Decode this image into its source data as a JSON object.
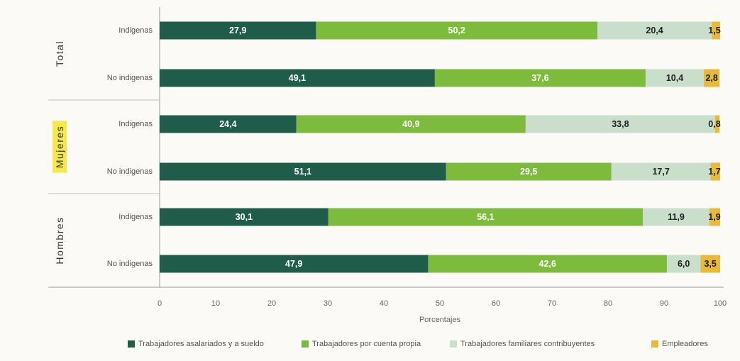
{
  "chart_data": {
    "type": "bar",
    "orientation": "horizontal",
    "stacked": true,
    "xlabel": "Porcentajes",
    "xlim": [
      0,
      100
    ],
    "xticks": [
      0,
      10,
      20,
      30,
      40,
      50,
      60,
      70,
      80,
      90,
      100
    ],
    "groups": [
      {
        "name": "Total",
        "highlight": false,
        "rows": [
          {
            "label": "Indigenas",
            "values": [
              27.9,
              50.2,
              20.4,
              1.5
            ],
            "texts": [
              "27,9",
              "50,2",
              "20,4",
              "1,5"
            ]
          },
          {
            "label": "No indigenas",
            "values": [
              49.1,
              37.6,
              10.4,
              2.8
            ],
            "texts": [
              "49,1",
              "37,6",
              "10,4",
              "2,8"
            ]
          }
        ]
      },
      {
        "name": "Mujeres",
        "highlight": true,
        "rows": [
          {
            "label": "Indigenas",
            "values": [
              24.4,
              40.9,
              33.8,
              0.8
            ],
            "texts": [
              "24,4",
              "40,9",
              "33,8",
              "0,8"
            ]
          },
          {
            "label": "No indigenas",
            "values": [
              51.1,
              29.5,
              17.7,
              1.7
            ],
            "texts": [
              "51,1",
              "29,5",
              "17,7",
              "1,7"
            ]
          }
        ]
      },
      {
        "name": "Hombres",
        "highlight": false,
        "rows": [
          {
            "label": "Indigenas",
            "values": [
              30.1,
              56.1,
              11.9,
              1.9
            ],
            "texts": [
              "30,1",
              "56,1",
              "11,9",
              "1,9"
            ]
          },
          {
            "label": "No indigenas",
            "values": [
              47.9,
              42.6,
              6.0,
              3.5
            ],
            "texts": [
              "47,9",
              "42,6",
              "6,0",
              "3,5"
            ]
          }
        ]
      }
    ],
    "series": [
      {
        "name": "Trabajadores asalariados y a sueldo",
        "color": "#1f5c4a",
        "label_color": "#ffffff"
      },
      {
        "name": "Trabajadores por cuenta propia",
        "color": "#7dbb3c",
        "label_color": "#ffffff"
      },
      {
        "name": "Trabajadores familiares contribuyentes",
        "color": "#c9dfcc",
        "label_color": "#222222"
      },
      {
        "name": "Empleadores",
        "color": "#e8b93b",
        "label_color": "#222222"
      }
    ],
    "legend_position": "bottom",
    "highlight_color": "#f6e84a",
    "separator_color": "#bfbfbf"
  }
}
